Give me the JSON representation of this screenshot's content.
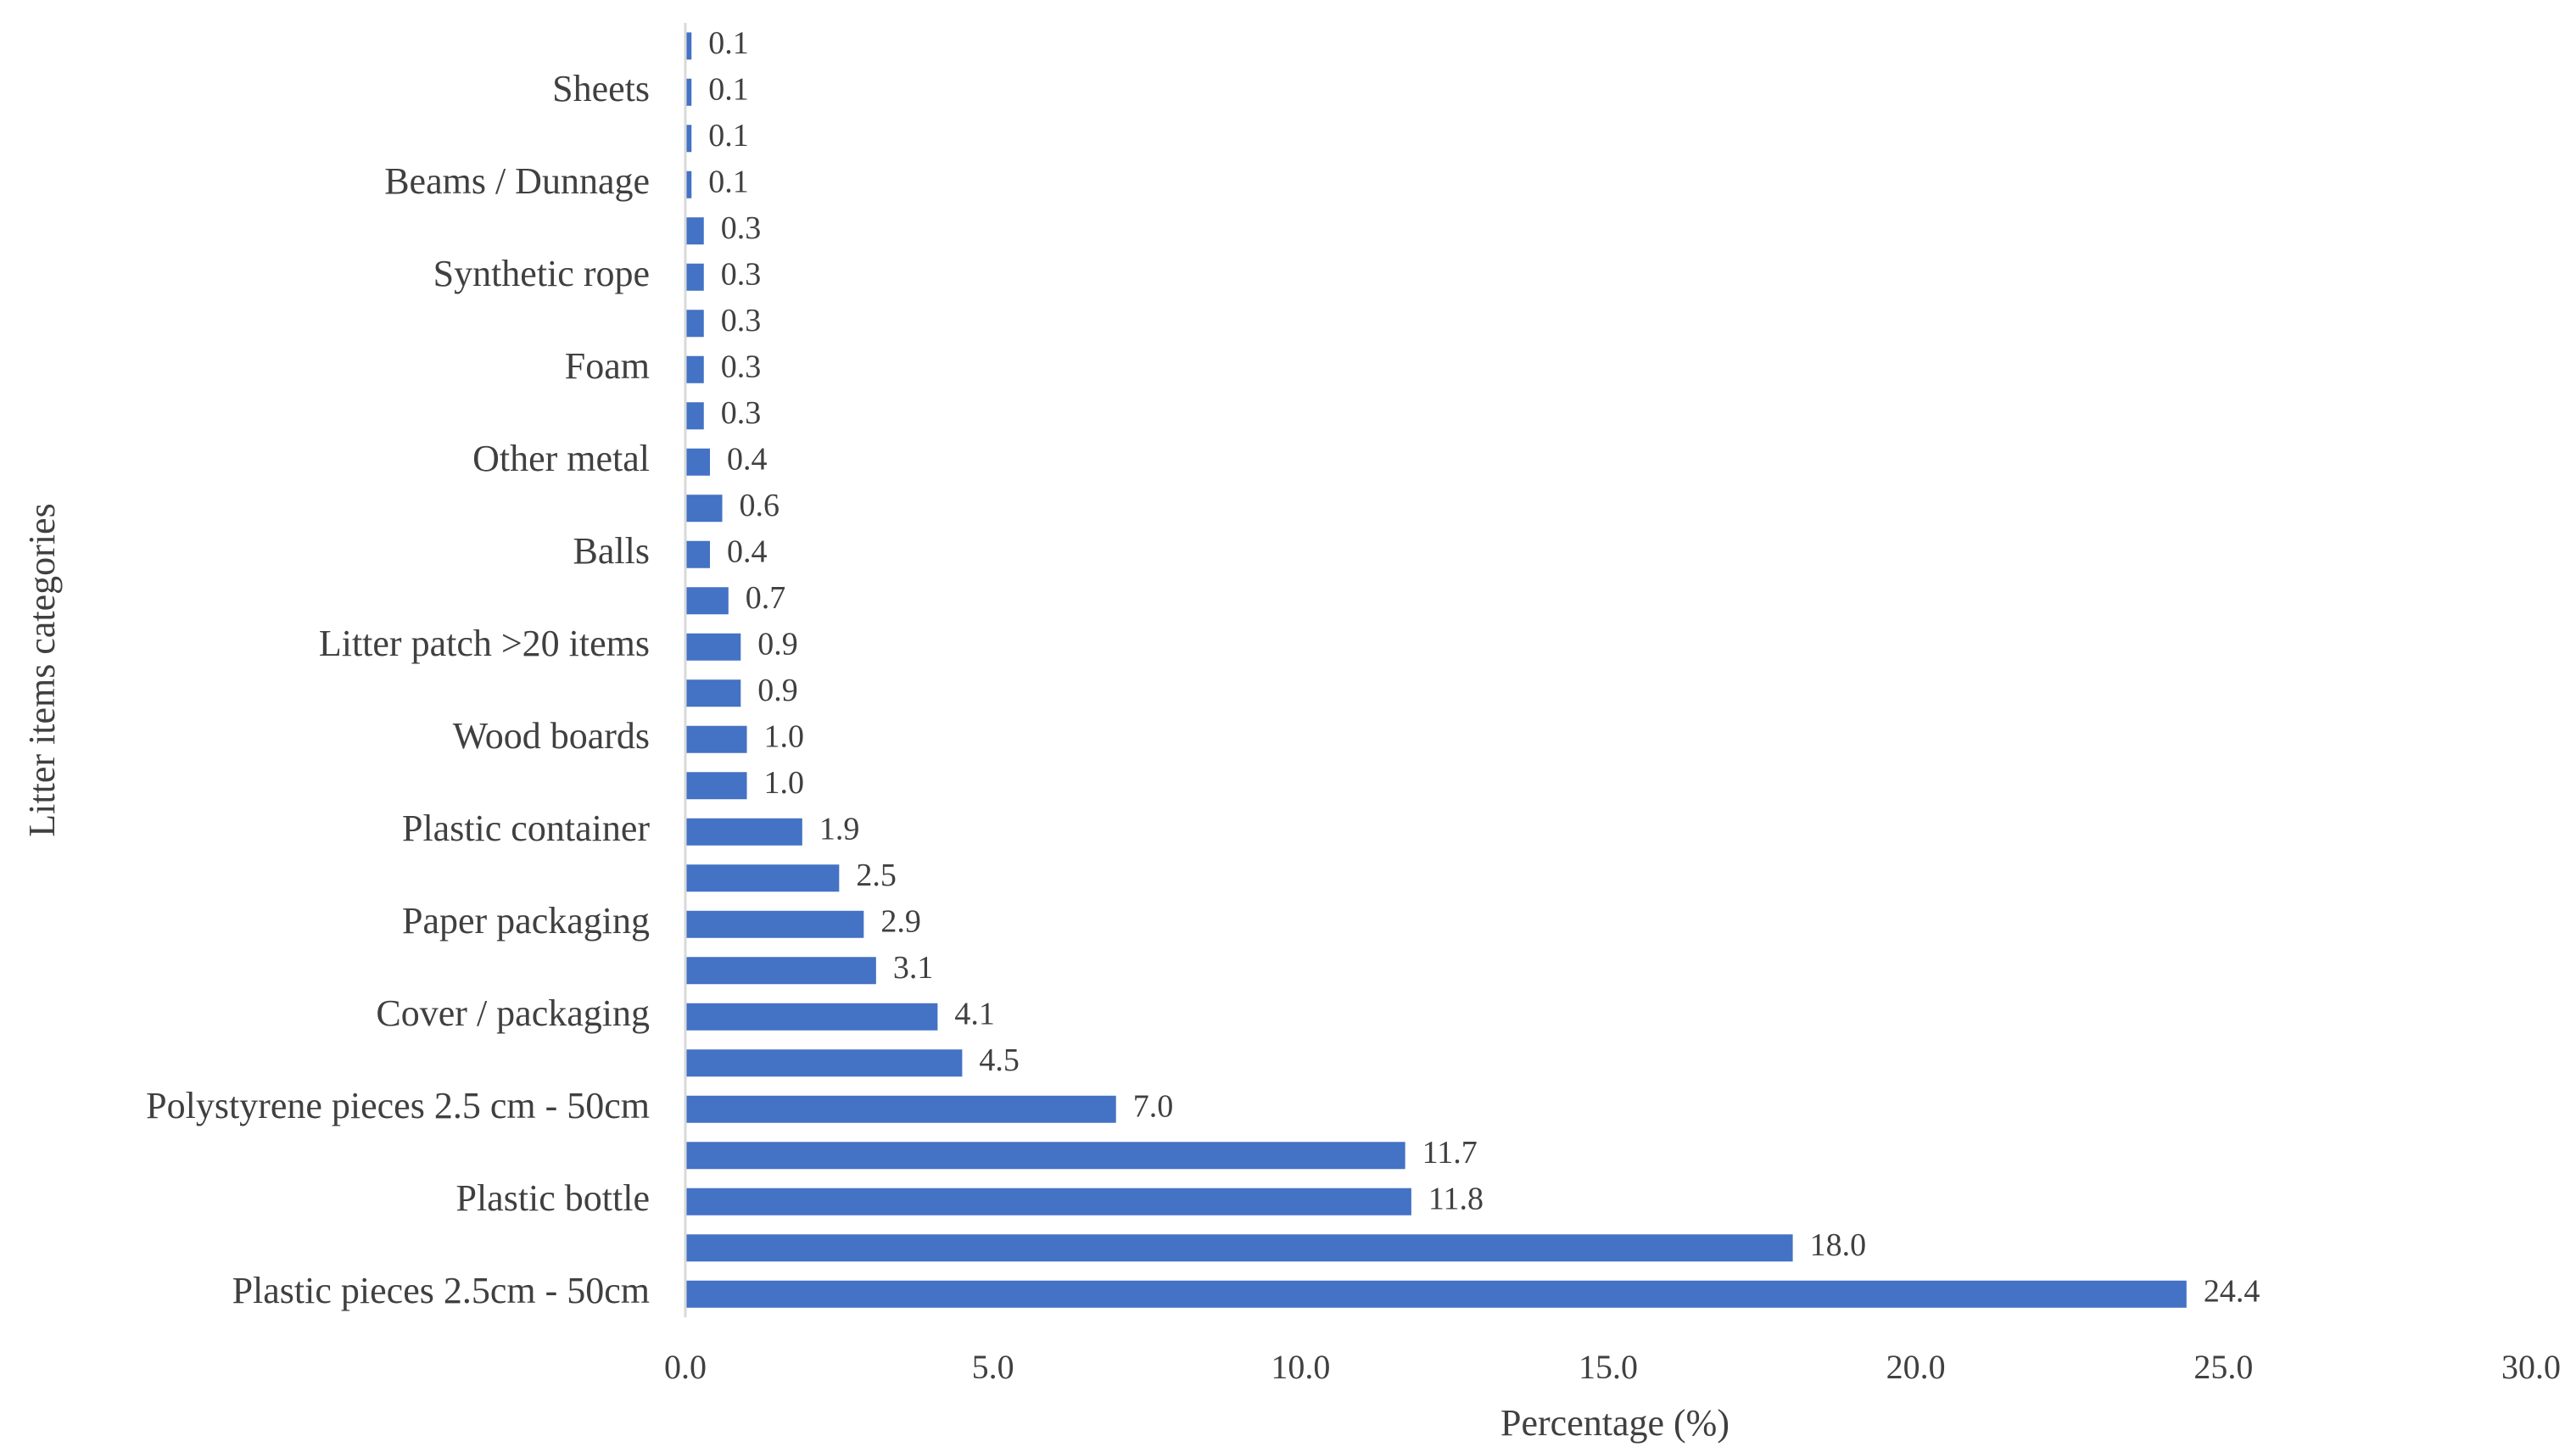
{
  "chart_data": {
    "type": "bar",
    "orientation": "horizontal",
    "categories": [
      "Plastic pieces 2.5cm - 50cm",
      "",
      "Plastic bottle",
      "",
      "Polystyrene pieces 2.5 cm - 50cm",
      "",
      "Cover / packaging",
      "",
      "Paper packaging",
      "",
      "Plastic container",
      "",
      "Wood boards",
      "",
      "Litter patch >20 items",
      "",
      "Balls",
      "",
      "Other metal",
      "",
      "Foam",
      "",
      "Synthetic rope",
      "",
      "Beams / Dunnage",
      "",
      "Sheets",
      ""
    ],
    "values": [
      24.4,
      18.0,
      11.8,
      11.7,
      7.0,
      4.5,
      4.1,
      3.1,
      2.9,
      2.5,
      1.9,
      1.0,
      1.0,
      0.9,
      0.9,
      0.7,
      0.4,
      0.6,
      0.4,
      0.3,
      0.3,
      0.3,
      0.3,
      0.3,
      0.1,
      0.1,
      0.1,
      0.1
    ],
    "data_labels": [
      "24.4",
      "18.0",
      "11.8",
      "11.7",
      "7.0",
      "4.5",
      "4.1",
      "3.1",
      "2.9",
      "2.5",
      "1.9",
      "1.0",
      "1.0",
      "0.9",
      "0.9",
      "0.7",
      "0.4",
      "0.6",
      "0.4",
      "0.3",
      "0.3",
      "0.3",
      "0.3",
      "0.3",
      "0.1",
      "0.1",
      "0.1",
      "0.1"
    ],
    "xlabel": "Percentage  (%)",
    "ylabel": "Litter items categories",
    "xlim": [
      0,
      30
    ],
    "xticks": [
      0,
      5,
      10,
      15,
      20,
      25,
      30
    ],
    "xtick_labels": [
      "0.0",
      "5.0",
      "10.0",
      "15.0",
      "20.0",
      "25.0",
      "30.0"
    ],
    "grid": false,
    "legend": "none",
    "bar_color": "#4472C4",
    "text_color": "#404040",
    "axis_color": "#D9D9D9"
  }
}
